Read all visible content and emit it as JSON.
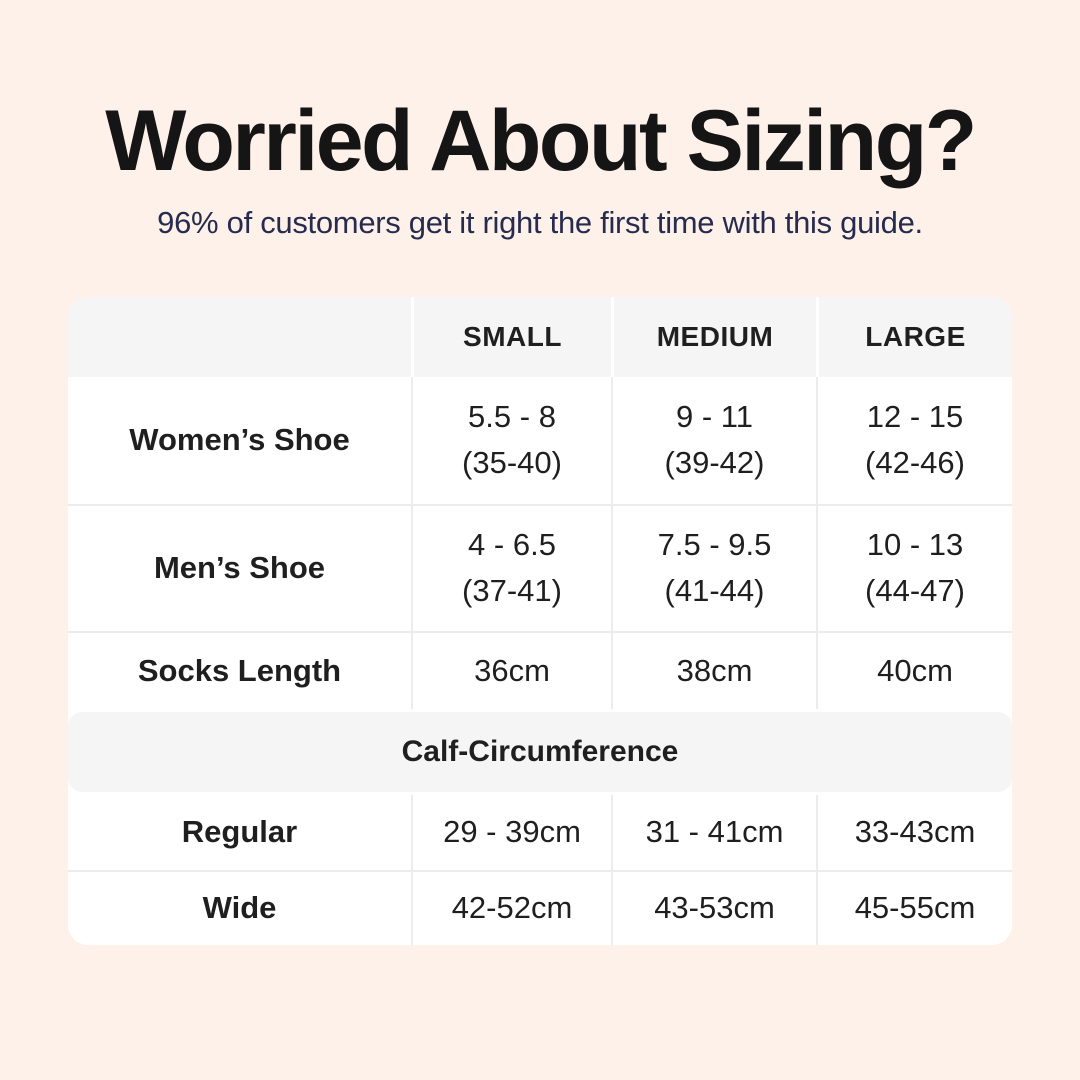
{
  "colors": {
    "background": "#fdf1ea",
    "card_bg": "#ffffff",
    "band_bg": "#f5f5f6",
    "divider": "#ececec",
    "title_color": "#151515",
    "subtitle_color": "#272c4e",
    "text_color": "#1f1f1f"
  },
  "chart_data": {
    "type": "table",
    "title": "Worried About Sizing?",
    "subtitle": "96% of customers get it right the first time with this guide.",
    "columns": [
      "",
      "SMALL",
      "MEDIUM",
      "LARGE"
    ],
    "sections": [
      {
        "rows": [
          {
            "label": "Women’s Shoe",
            "values": [
              [
                "5.5 - 8",
                "(35-40)"
              ],
              [
                "9 - 11",
                "(39-42)"
              ],
              [
                "12 - 15",
                "(42-46)"
              ]
            ]
          },
          {
            "label": "Men’s Shoe",
            "values": [
              [
                "4 - 6.5",
                "(37-41)"
              ],
              [
                "7.5 - 9.5",
                "(41-44)"
              ],
              [
                "10 - 13",
                "(44-47)"
              ]
            ]
          },
          {
            "label": "Socks Length",
            "values": [
              [
                "36cm"
              ],
              [
                "38cm"
              ],
              [
                "40cm"
              ]
            ]
          }
        ]
      },
      {
        "header": "Calf-Circumference",
        "rows": [
          {
            "label": "Regular",
            "values": [
              [
                "29 - 39cm"
              ],
              [
                "31 - 41cm"
              ],
              [
                "33-43cm"
              ]
            ]
          },
          {
            "label": "Wide",
            "values": [
              [
                "42-52cm"
              ],
              [
                "43-53cm"
              ],
              [
                "45-55cm"
              ]
            ]
          }
        ]
      }
    ]
  }
}
